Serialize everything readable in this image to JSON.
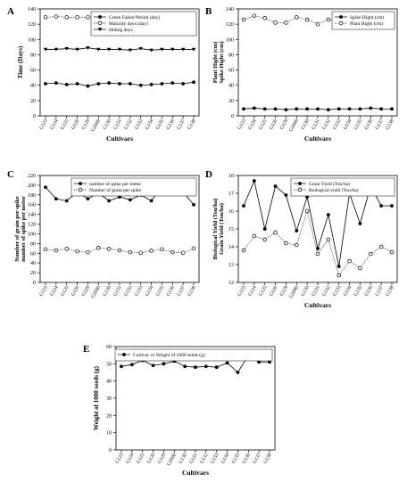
{
  "figure": {
    "panels": [
      {
        "id": "A",
        "letter": "A"
      },
      {
        "id": "B",
        "letter": "B"
      },
      {
        "id": "C",
        "letter": "C"
      },
      {
        "id": "D",
        "letter": "D"
      },
      {
        "id": "E",
        "letter": "E"
      }
    ]
  },
  "chart_data": [
    {
      "panel": "A",
      "type": "line",
      "categories": [
        "G123",
        "G124",
        "G125",
        "G126",
        "G129",
        "G2000",
        "G130",
        "G131",
        "G132",
        "G133",
        "G134",
        "G135",
        "G136",
        "G137",
        "G138"
      ],
      "xlabel": "Cultivars",
      "ylabel": "Time (Days)",
      "ylim": [
        0,
        140
      ],
      "yticks": [
        0,
        20,
        40,
        60,
        80,
        100,
        120,
        140
      ],
      "grid": false,
      "legend_position": "top-right",
      "series": [
        {
          "name": "Green Failed Period (day)",
          "marker": "filled-circle",
          "line": "solid",
          "values": [
            42,
            43,
            41,
            42,
            39,
            42,
            43,
            42,
            42,
            40,
            41,
            42,
            43,
            42,
            44
          ]
        },
        {
          "name": "Maturity days (day)",
          "marker": "open-circle",
          "line": "dotted",
          "values": [
            129,
            130,
            129,
            129,
            129,
            130,
            129,
            128,
            129,
            129,
            129,
            130,
            130,
            130,
            130
          ]
        },
        {
          "name": "Hiding days",
          "marker": "filled-triangle-down",
          "line": "solid",
          "values": [
            87,
            87,
            88,
            87,
            89,
            87,
            87,
            87,
            86,
            88,
            86,
            87,
            87,
            87,
            87
          ]
        }
      ]
    },
    {
      "panel": "B",
      "type": "line",
      "categories": [
        "G123",
        "G124",
        "G125",
        "G126",
        "G129",
        "G2000",
        "G130",
        "G131",
        "G132",
        "G133",
        "G134",
        "G135",
        "G136",
        "G137",
        "G138"
      ],
      "xlabel": "Cultivars",
      "ylabel": "Plant Hight (cm)",
      "ylabel2": "Spike Hight (cm)",
      "ylim": [
        0,
        140
      ],
      "yticks": [
        0,
        20,
        40,
        60,
        80,
        100,
        120,
        140
      ],
      "grid": false,
      "legend_position": "top-right",
      "series": [
        {
          "name": "Spike Hight (cm)",
          "marker": "filled-circle",
          "line": "solid",
          "values": [
            9,
            10,
            9,
            9,
            8,
            9,
            9,
            9,
            8,
            9,
            9,
            9,
            10,
            9,
            9
          ]
        },
        {
          "name": "Plant Hight (cm)",
          "marker": "open-circle",
          "line": "dotted",
          "values": [
            126,
            131,
            128,
            122,
            122,
            129,
            126,
            120,
            126,
            125,
            125,
            124,
            122,
            117,
            124
          ]
        }
      ]
    },
    {
      "panel": "C",
      "type": "line",
      "categories": [
        "G123",
        "G124",
        "G125",
        "G126",
        "G129",
        "G2000",
        "G130",
        "G131",
        "G132",
        "G133",
        "G134",
        "G135",
        "G136",
        "G137",
        "G138"
      ],
      "xlabel": "",
      "ylabel": "Number of grain per spike",
      "ylabel2": "number of spike per meter",
      "ylim": [
        0,
        220
      ],
      "yticks": [
        0,
        20,
        40,
        60,
        80,
        100,
        120,
        140,
        160,
        180,
        200,
        220
      ],
      "grid": false,
      "legend_position": "top-right",
      "series": [
        {
          "name": "number of spike per meter",
          "marker": "filled-circle",
          "line": "solid",
          "values": [
            196,
            172,
            168,
            186,
            172,
            184,
            168,
            176,
            170,
            180,
            168,
            198,
            185,
            186,
            160
          ]
        },
        {
          "name": "Number of grain per spike",
          "marker": "open-circle",
          "line": "dotted",
          "values": [
            68,
            66,
            69,
            64,
            62,
            71,
            69,
            66,
            62,
            61,
            65,
            68,
            62,
            61,
            70
          ]
        }
      ]
    },
    {
      "panel": "D",
      "type": "line",
      "categories": [
        "G123",
        "G124",
        "G125",
        "G126",
        "G129",
        "G2000",
        "G130",
        "G131",
        "G132",
        "G133",
        "G134",
        "G135",
        "G136",
        "G137",
        "G138"
      ],
      "xlabel": "Cultivars",
      "ylabel": "Biological Yield (Ton/ha)",
      "ylabel2": "Grain Yield (Ton/ha)",
      "ylim": [
        12,
        18
      ],
      "yticks": [
        12,
        13,
        14,
        15,
        16,
        17,
        18
      ],
      "grid": false,
      "legend_position": "top-right",
      "series": [
        {
          "name": "Grain Yield (Ton/ha)",
          "marker": "filled-circle",
          "line": "solid",
          "values": [
            16.3,
            17.7,
            15.0,
            17.4,
            16.9,
            14.9,
            16.8,
            13.9,
            15.8,
            12.9,
            17.0,
            15.3,
            17.4,
            16.3,
            16.3
          ]
        },
        {
          "name": "Biological yield (Ton/ha)",
          "marker": "open-circle",
          "line": "dotted",
          "values": [
            13.8,
            14.6,
            14.4,
            14.8,
            14.2,
            14.1,
            16.0,
            13.6,
            14.4,
            12.4,
            13.2,
            12.8,
            13.6,
            14.0,
            13.7
          ]
        }
      ]
    },
    {
      "panel": "E",
      "type": "line",
      "categories": [
        "G123",
        "G124",
        "G125",
        "G126",
        "G129",
        "G2000",
        "G130",
        "G131",
        "G132",
        "G133",
        "G134",
        "G135",
        "G136",
        "G137",
        "G138"
      ],
      "xlabel": "Cultivars",
      "ylabel": "Weight of 1000 seeds (g)",
      "ylim": [
        0,
        60
      ],
      "yticks": [
        0,
        10,
        20,
        30,
        40,
        50,
        60
      ],
      "grid": false,
      "legend_position": "top-right",
      "series": [
        {
          "name": "Cultivar vs Weight of 1000 seeds (g)",
          "marker": "filled-circle",
          "line": "solid",
          "values": [
            48.5,
            49.5,
            52,
            49,
            50,
            51.5,
            48.5,
            48,
            48.5,
            48,
            50.5,
            45,
            55,
            51,
            51
          ]
        }
      ]
    }
  ]
}
